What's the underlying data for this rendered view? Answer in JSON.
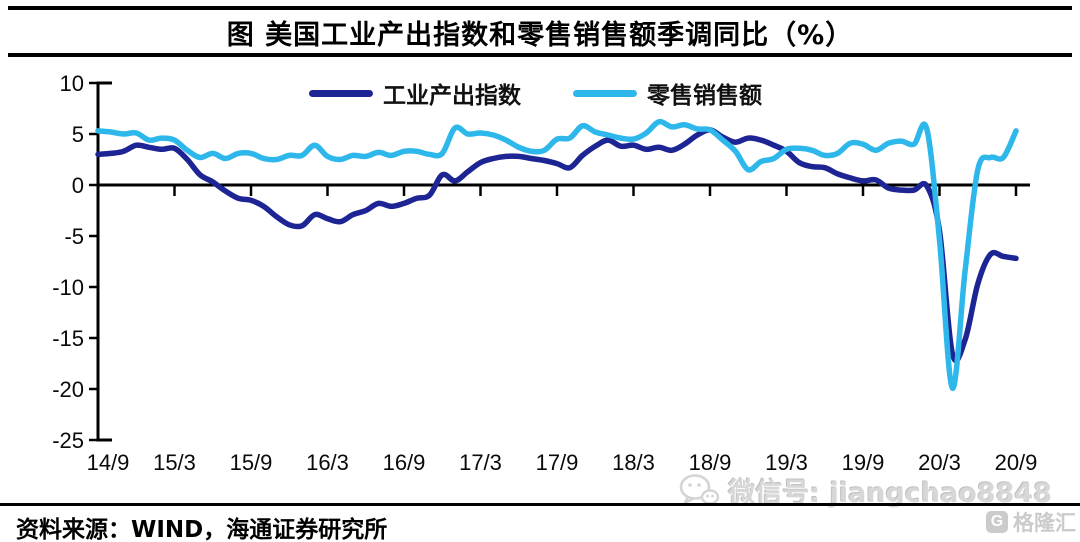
{
  "header": {
    "title": "图 美国工业产出指数和零售销售额季调同比（%）"
  },
  "legend": {
    "items": [
      {
        "label": "工业产出指数",
        "color": "#1d2493"
      },
      {
        "label": "零售销售额",
        "color": "#2eb7ea"
      }
    ]
  },
  "footer": {
    "source": "资料来源：WIND，海通证券研究所"
  },
  "watermark": {
    "icon": "wechat-icon",
    "text": "微信号: jiangchao8848"
  },
  "brand": {
    "icon_letter": "G",
    "name": "格隆汇"
  },
  "chart_data": {
    "type": "line",
    "title": "图 美国工业产出指数和零售销售额季调同比（%）",
    "unit": "%",
    "x_frequency": "monthly",
    "x_range": "2014/09 - 2020/09",
    "x_tick_labels": [
      "14/9",
      "15/3",
      "15/9",
      "16/3",
      "16/9",
      "17/3",
      "17/9",
      "18/3",
      "18/9",
      "19/3",
      "19/9",
      "20/3",
      "20/9"
    ],
    "y_ticks": [
      10,
      5,
      0,
      -5,
      -10,
      -15,
      -20,
      -25
    ],
    "ylim": [
      -25,
      10
    ],
    "grid": false,
    "legend_position": "top-center",
    "series": [
      {
        "name": "工业产出指数",
        "color": "#1d2493",
        "values": [
          3.0,
          3.1,
          3.3,
          3.9,
          3.7,
          3.5,
          3.6,
          2.5,
          1.0,
          0.3,
          -0.6,
          -1.3,
          -1.5,
          -2.1,
          -3.1,
          -3.9,
          -4.0,
          -2.9,
          -3.3,
          -3.6,
          -2.9,
          -2.5,
          -1.8,
          -2.1,
          -1.8,
          -1.3,
          -1.0,
          1.0,
          0.4,
          1.3,
          2.2,
          2.6,
          2.8,
          2.8,
          2.6,
          2.4,
          2.1,
          1.7,
          2.9,
          3.8,
          4.4,
          3.8,
          3.9,
          3.5,
          3.7,
          3.4,
          4.0,
          4.9,
          5.4,
          4.7,
          4.2,
          4.6,
          4.4,
          3.9,
          3.3,
          2.2,
          1.8,
          1.7,
          1.1,
          0.7,
          0.4,
          0.5,
          -0.3,
          -0.5,
          -0.5,
          -0.1,
          -4.5,
          -16.5,
          -15.2,
          -9.7,
          -6.8,
          -7.0,
          -7.2
        ]
      },
      {
        "name": "零售销售额",
        "color": "#2eb7ea",
        "values": [
          5.3,
          5.2,
          5.0,
          5.1,
          4.4,
          4.6,
          4.4,
          3.4,
          2.7,
          3.1,
          2.6,
          3.1,
          3.1,
          2.6,
          2.5,
          2.9,
          2.9,
          3.9,
          2.8,
          2.5,
          2.9,
          2.8,
          3.2,
          2.9,
          3.3,
          3.3,
          3.0,
          3.1,
          5.6,
          5.0,
          5.1,
          4.9,
          4.4,
          3.7,
          3.3,
          3.4,
          4.5,
          4.6,
          5.8,
          5.2,
          4.9,
          4.6,
          4.5,
          5.1,
          6.2,
          5.7,
          5.9,
          5.5,
          5.4,
          4.4,
          3.3,
          1.5,
          2.3,
          2.6,
          3.5,
          3.6,
          3.4,
          2.9,
          3.1,
          4.1,
          4.0,
          3.4,
          4.1,
          4.3,
          4.0,
          5.5,
          -5.4,
          -19.9,
          -8.5,
          1.5,
          2.7,
          2.7,
          5.3
        ]
      }
    ]
  }
}
